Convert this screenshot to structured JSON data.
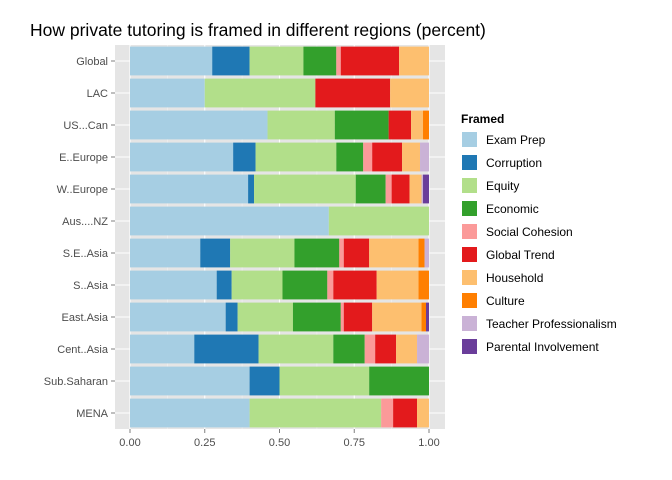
{
  "chart_data": {
    "type": "bar",
    "orientation": "horizontal",
    "stacked": true,
    "title": "How private tutoring is framed in different regions (percent)",
    "xlabel": "",
    "ylabel": "",
    "xlim": [
      0,
      1
    ],
    "x_ticks": [
      "0.00",
      "0.25",
      "0.50",
      "0.75",
      "1.00"
    ],
    "x_tick_values": [
      0,
      0.25,
      0.5,
      0.75,
      1
    ],
    "grid": true,
    "legend_position": "right",
    "legend_title": "Framed",
    "categories": [
      "Global",
      "LAC",
      "US...Can",
      "E..Europe",
      "W..Europe",
      "Aus....NZ",
      "S.E..Asia",
      "S..Asia",
      "East.Asia",
      "Cent..Asia",
      "Sub.Saharan",
      "MENA"
    ],
    "series": [
      {
        "name": "Exam Prep",
        "color": "#a6cee3",
        "values": [
          0.275,
          0.25,
          0.46,
          0.345,
          0.395,
          0.665,
          0.235,
          0.29,
          0.32,
          0.215,
          0.4,
          0.4
        ]
      },
      {
        "name": "Corruption",
        "color": "#1f78b4",
        "values": [
          0.125,
          0,
          0,
          0.075,
          0.02,
          0,
          0.1,
          0.05,
          0.04,
          0.215,
          0.1,
          0
        ]
      },
      {
        "name": "Equity",
        "color": "#b2df8a",
        "values": [
          0.18,
          0.37,
          0.225,
          0.27,
          0.34,
          0.335,
          0.215,
          0.17,
          0.185,
          0.25,
          0.3,
          0.44
        ]
      },
      {
        "name": "Economic",
        "color": "#33a02c",
        "values": [
          0.11,
          0,
          0.18,
          0.09,
          0.1,
          0,
          0.15,
          0.15,
          0.16,
          0.105,
          0.2,
          0
        ]
      },
      {
        "name": "Social Cohesion",
        "color": "#fb9a99",
        "values": [
          0.015,
          0,
          0,
          0.03,
          0.02,
          0,
          0.015,
          0.02,
          0.01,
          0.035,
          0,
          0.04
        ]
      },
      {
        "name": "Global Trend",
        "color": "#e31a1c",
        "values": [
          0.195,
          0.25,
          0.075,
          0.1,
          0.06,
          0,
          0.085,
          0.145,
          0.095,
          0.07,
          0,
          0.08
        ]
      },
      {
        "name": "Household",
        "color": "#fdbf6f",
        "values": [
          0.1,
          0.13,
          0.04,
          0.06,
          0.04,
          0,
          0.165,
          0.14,
          0.165,
          0.07,
          0,
          0.04
        ]
      },
      {
        "name": "Culture",
        "color": "#ff7f00",
        "values": [
          0,
          0,
          0.02,
          0,
          0,
          0,
          0.02,
          0.035,
          0.015,
          0,
          0,
          0
        ]
      },
      {
        "name": "Teacher Professionalism",
        "color": "#cab2d6",
        "values": [
          0,
          0,
          0,
          0.03,
          0.005,
          0,
          0.015,
          0,
          0,
          0.04,
          0,
          0
        ]
      },
      {
        "name": "Parental Involvement",
        "color": "#6a3d9a",
        "values": [
          0,
          0,
          0,
          0,
          0.02,
          0,
          0,
          0,
          0.01,
          0,
          0,
          0
        ]
      }
    ]
  }
}
